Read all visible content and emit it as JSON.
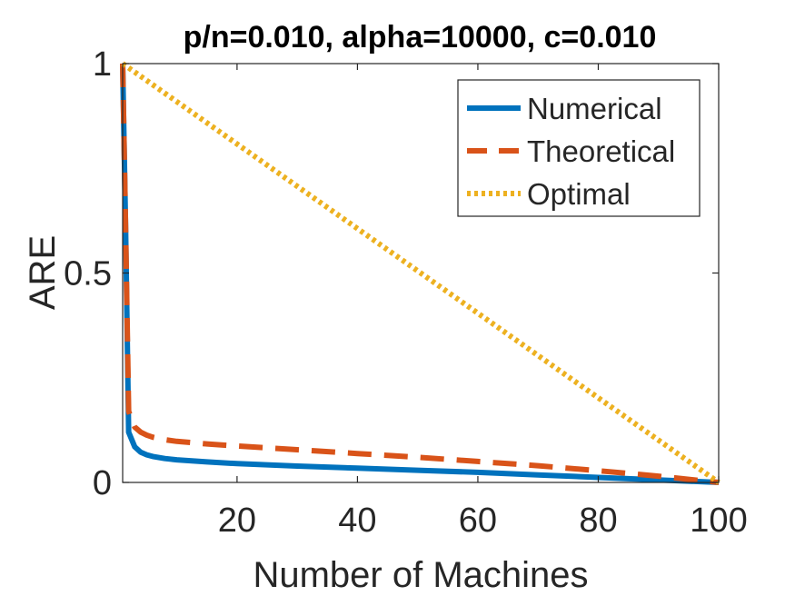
{
  "chart_data": {
    "type": "line",
    "title": "p/n=0.010, alpha=10000, c=0.010",
    "xlabel": "Number of Machines",
    "ylabel": "ARE",
    "xlim": [
      1,
      100
    ],
    "ylim": [
      0,
      1
    ],
    "xticks": [
      20,
      40,
      60,
      80,
      100
    ],
    "xtick_labels": [
      "20",
      "40",
      "60",
      "80",
      "100"
    ],
    "yticks": [
      0,
      0.5,
      1
    ],
    "ytick_labels": [
      "0",
      "0.5",
      "1"
    ],
    "grid": false,
    "legend_position": "top-right",
    "series": [
      {
        "name": "Numerical",
        "color": "#0072BD",
        "style": "solid",
        "x": [
          1,
          1.5,
          2,
          3,
          4,
          5,
          6,
          8,
          10,
          15,
          20,
          30,
          40,
          50,
          60,
          70,
          80,
          90,
          100
        ],
        "y": [
          1.0,
          0.6,
          0.12,
          0.085,
          0.072,
          0.066,
          0.062,
          0.057,
          0.054,
          0.049,
          0.045,
          0.039,
          0.034,
          0.029,
          0.024,
          0.018,
          0.012,
          0.006,
          0.0
        ]
      },
      {
        "name": "Theoretical",
        "color": "#D95319",
        "style": "dashed",
        "x": [
          1,
          1.5,
          2,
          2.5,
          3,
          4,
          5,
          6,
          8,
          10,
          15,
          20,
          30,
          40,
          50,
          60,
          70,
          80,
          90,
          100
        ],
        "y": [
          1.0,
          0.6,
          0.17,
          0.15,
          0.132,
          0.12,
          0.113,
          0.108,
          0.102,
          0.098,
          0.092,
          0.087,
          0.078,
          0.069,
          0.06,
          0.05,
          0.04,
          0.028,
          0.015,
          0.0
        ]
      },
      {
        "name": "Optimal",
        "color": "#EDB120",
        "style": "dotted",
        "x": [
          1,
          100
        ],
        "y": [
          1.0,
          0.0
        ]
      }
    ]
  }
}
